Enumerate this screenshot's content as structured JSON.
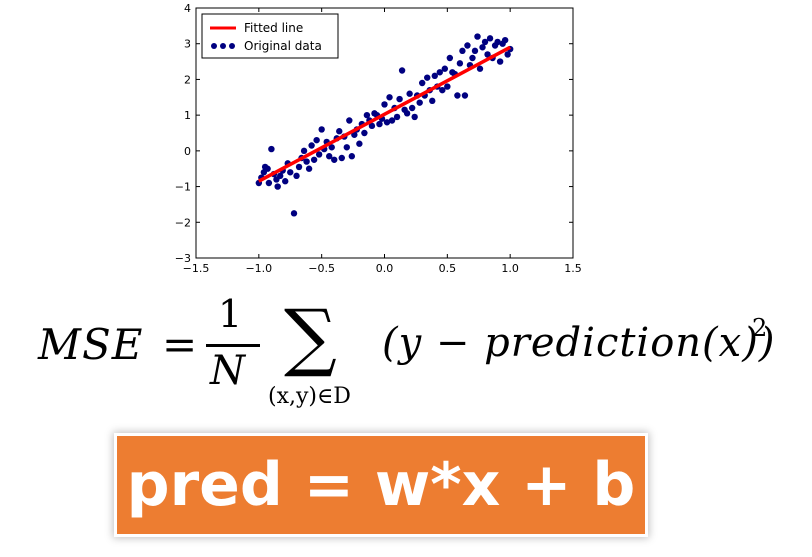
{
  "chart_data": {
    "type": "scatter",
    "xlim": [
      -1.5,
      1.5
    ],
    "ylim": [
      -3,
      4
    ],
    "x_ticks": [
      "−1.5",
      "−1.0",
      "−0.5",
      "0.0",
      "0.5",
      "1.0",
      "1.5"
    ],
    "y_ticks": [
      "−3",
      "−2",
      "−1",
      "0",
      "1",
      "2",
      "3",
      "4"
    ],
    "x_tick_values": [
      -1.5,
      -1.0,
      -0.5,
      0.0,
      0.5,
      1.0,
      1.5
    ],
    "y_tick_values": [
      -3,
      -2,
      -1,
      0,
      1,
      2,
      3,
      4
    ],
    "grid": false,
    "legend_position": "top-left",
    "series": [
      {
        "name": "Fitted line",
        "kind": "line",
        "color": "#ff0000",
        "x": [
          -1.0,
          1.0
        ],
        "y": [
          -0.85,
          2.9
        ]
      },
      {
        "name": "Original data",
        "kind": "scatter",
        "color": "#000080",
        "points": [
          [
            -1.0,
            -0.9
          ],
          [
            -0.98,
            -0.75
          ],
          [
            -0.96,
            -0.6
          ],
          [
            -0.95,
            -0.45
          ],
          [
            -0.93,
            -0.5
          ],
          [
            -0.92,
            -0.9
          ],
          [
            -0.9,
            0.05
          ],
          [
            -0.88,
            -0.65
          ],
          [
            -0.86,
            -0.8
          ],
          [
            -0.85,
            -1.0
          ],
          [
            -0.83,
            -0.7
          ],
          [
            -0.81,
            -0.55
          ],
          [
            -0.79,
            -0.85
          ],
          [
            -0.77,
            -0.35
          ],
          [
            -0.75,
            -0.6
          ],
          [
            -0.72,
            -1.75
          ],
          [
            -0.7,
            -0.7
          ],
          [
            -0.68,
            -0.45
          ],
          [
            -0.66,
            -0.2
          ],
          [
            -0.64,
            0.0
          ],
          [
            -0.62,
            -0.3
          ],
          [
            -0.6,
            -0.5
          ],
          [
            -0.58,
            0.15
          ],
          [
            -0.56,
            -0.25
          ],
          [
            -0.54,
            0.3
          ],
          [
            -0.52,
            -0.1
          ],
          [
            -0.5,
            0.6
          ],
          [
            -0.48,
            0.05
          ],
          [
            -0.46,
            0.25
          ],
          [
            -0.44,
            -0.15
          ],
          [
            -0.42,
            0.1
          ],
          [
            -0.4,
            -0.25
          ],
          [
            -0.38,
            0.35
          ],
          [
            -0.36,
            0.55
          ],
          [
            -0.34,
            -0.2
          ],
          [
            -0.32,
            0.4
          ],
          [
            -0.3,
            0.1
          ],
          [
            -0.28,
            0.85
          ],
          [
            -0.26,
            -0.15
          ],
          [
            -0.24,
            0.45
          ],
          [
            -0.22,
            0.6
          ],
          [
            -0.2,
            0.2
          ],
          [
            -0.18,
            0.75
          ],
          [
            -0.16,
            0.5
          ],
          [
            -0.14,
            1.0
          ],
          [
            -0.12,
            0.85
          ],
          [
            -0.1,
            0.7
          ],
          [
            -0.08,
            1.05
          ],
          [
            -0.06,
            1.0
          ],
          [
            -0.04,
            0.75
          ],
          [
            -0.02,
            0.9
          ],
          [
            0.0,
            1.3
          ],
          [
            0.02,
            0.8
          ],
          [
            0.04,
            1.5
          ],
          [
            0.06,
            0.85
          ],
          [
            0.08,
            1.2
          ],
          [
            0.1,
            0.95
          ],
          [
            0.12,
            1.45
          ],
          [
            0.14,
            2.25
          ],
          [
            0.16,
            1.15
          ],
          [
            0.18,
            1.05
          ],
          [
            0.2,
            1.6
          ],
          [
            0.22,
            1.2
          ],
          [
            0.24,
            0.95
          ],
          [
            0.26,
            1.55
          ],
          [
            0.28,
            1.35
          ],
          [
            0.3,
            1.9
          ],
          [
            0.32,
            1.55
          ],
          [
            0.34,
            2.05
          ],
          [
            0.36,
            1.7
          ],
          [
            0.38,
            1.4
          ],
          [
            0.4,
            2.1
          ],
          [
            0.42,
            1.8
          ],
          [
            0.44,
            2.2
          ],
          [
            0.46,
            1.7
          ],
          [
            0.48,
            2.3
          ],
          [
            0.5,
            1.8
          ],
          [
            0.52,
            2.6
          ],
          [
            0.54,
            2.2
          ],
          [
            0.56,
            2.15
          ],
          [
            0.58,
            1.55
          ],
          [
            0.6,
            2.45
          ],
          [
            0.62,
            2.8
          ],
          [
            0.64,
            1.55
          ],
          [
            0.66,
            2.95
          ],
          [
            0.68,
            2.4
          ],
          [
            0.7,
            2.6
          ],
          [
            0.72,
            2.8
          ],
          [
            0.74,
            3.2
          ],
          [
            0.76,
            2.3
          ],
          [
            0.78,
            2.9
          ],
          [
            0.8,
            3.05
          ],
          [
            0.82,
            2.7
          ],
          [
            0.84,
            3.15
          ],
          [
            0.86,
            2.6
          ],
          [
            0.88,
            2.95
          ],
          [
            0.9,
            3.05
          ],
          [
            0.92,
            2.5
          ],
          [
            0.94,
            3.0
          ],
          [
            0.96,
            3.1
          ],
          [
            0.98,
            2.7
          ],
          [
            1.0,
            2.85
          ]
        ]
      }
    ]
  },
  "formula": {
    "lhs": "MSE",
    "equals": "=",
    "numerator": "1",
    "denominator": "N",
    "sum_symbol": "∑",
    "subscript": "(x,y)∈D",
    "body": "(y − prediction(x))",
    "power": "2"
  },
  "pred_box": {
    "text": "pred = w*x + b",
    "color": "#ed7d31"
  }
}
